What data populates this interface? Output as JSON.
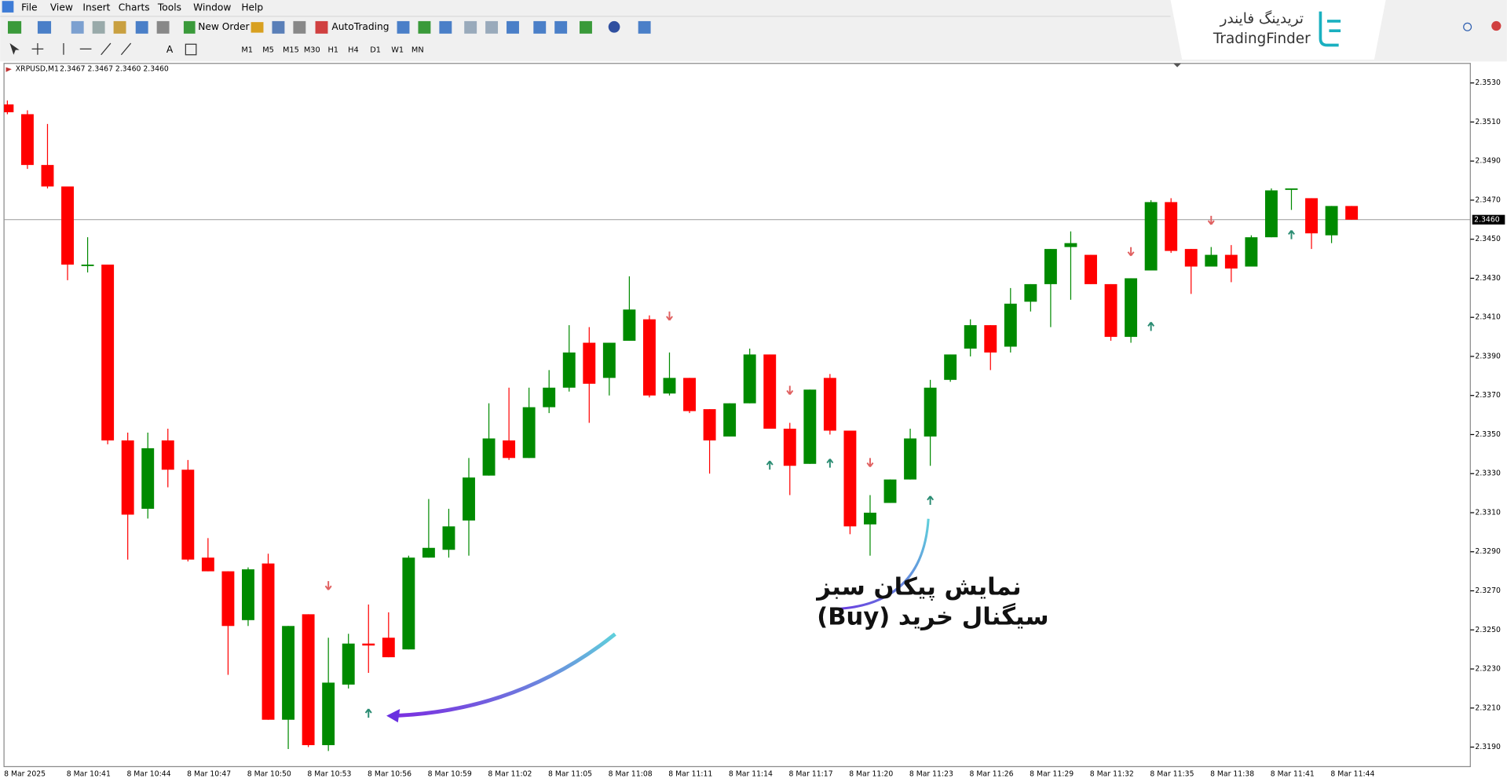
{
  "menu": [
    "File",
    "View",
    "Insert",
    "Charts",
    "Tools",
    "Window",
    "Help"
  ],
  "toolbar": {
    "new_order": "New Order",
    "autotrading": "AutoTrading"
  },
  "timeframes": [
    "M1",
    "M5",
    "M15",
    "M30",
    "H1",
    "H4",
    "D1",
    "W1",
    "MN"
  ],
  "logo": {
    "fa": "تریدینگ فایندر",
    "en": "TradingFinder"
  },
  "chart_data": {
    "type": "candlestick",
    "header": {
      "symbol": "XRPUSD,M1",
      "ohlc": "2.3467 2.3467 2.3460 2.3460"
    },
    "annotation": [
      "نمایش پیکان سبز",
      "سیگنال خرید (Buy)"
    ],
    "up_color": "#008a00",
    "down_color": "#ff0000",
    "buy_color": "#2a8c72",
    "sell_color": "#e06060",
    "categories": [
      "8 Mar 2025",
      null,
      null,
      "8 Mar 10:41",
      null,
      null,
      "8 Mar 10:44",
      null,
      null,
      "8 Mar 10:47",
      null,
      null,
      "8 Mar 10:50",
      null,
      null,
      "8 Mar 10:53",
      null,
      null,
      "8 Mar 10:56",
      null,
      null,
      "8 Mar 10:59",
      null,
      null,
      "8 Mar 11:02",
      null,
      null,
      "8 Mar 11:05",
      null,
      null,
      "8 Mar 11:08",
      null,
      null,
      "8 Mar 11:11",
      null,
      null,
      "8 Mar 11:14",
      null,
      null,
      "8 Mar 11:17",
      null,
      null,
      "8 Mar 11:20",
      null,
      null,
      "8 Mar 11:23",
      null,
      null,
      "8 Mar 11:26",
      null,
      null,
      "8 Mar 11:29",
      null,
      null,
      "8 Mar 11:32",
      null,
      null,
      "8 Mar 11:35",
      null,
      null,
      "8 Mar 11:38",
      null,
      null,
      "8 Mar 11:41",
      null,
      null,
      "8 Mar 11:44",
      null
    ],
    "open": [
      2.3519,
      2.3514,
      2.3488,
      2.3477,
      2.3437,
      2.3437,
      2.3347,
      2.3312,
      2.3347,
      2.3332,
      2.3287,
      2.328,
      2.3255,
      2.3284,
      2.3204,
      2.3258,
      2.3191,
      2.3222,
      2.3243,
      2.3246,
      2.324,
      2.3287,
      2.3291,
      2.3306,
      2.3329,
      2.3347,
      2.3338,
      2.3364,
      2.3374,
      2.3397,
      2.3379,
      2.3398,
      2.3409,
      2.3371,
      2.3379,
      2.3363,
      2.3349,
      2.3366,
      2.3391,
      2.3353,
      2.3335,
      2.3379,
      2.3352,
      2.3304,
      2.3315,
      2.3327,
      2.3349,
      2.3378,
      2.3394,
      2.3406,
      2.3395,
      2.3418,
      2.3427,
      2.3446,
      2.3442,
      2.3427,
      2.34,
      2.3434,
      2.3469,
      2.3445,
      2.3436,
      2.3442,
      2.3436,
      2.3451,
      2.3476,
      2.3471,
      2.3452,
      2.3467
    ],
    "high": [
      2.3521,
      2.3516,
      2.3509,
      2.3477,
      2.3451,
      2.3437,
      2.3351,
      2.3351,
      2.3353,
      2.3337,
      2.3297,
      2.328,
      2.3282,
      2.3289,
      2.3252,
      2.3258,
      2.3246,
      2.3248,
      2.3263,
      2.3259,
      2.3288,
      2.3317,
      2.3312,
      2.3338,
      2.3366,
      2.3374,
      2.3374,
      2.3383,
      2.3406,
      2.3405,
      2.3397,
      2.3431,
      2.3411,
      2.3392,
      2.3379,
      2.3363,
      2.3366,
      2.3394,
      2.3391,
      2.3356,
      2.3373,
      2.3381,
      2.3352,
      2.3319,
      2.3327,
      2.3353,
      2.3378,
      2.3391,
      2.3409,
      2.3406,
      2.3425,
      2.3427,
      2.3445,
      2.3454,
      2.3442,
      2.3427,
      2.343,
      2.347,
      2.3471,
      2.3445,
      2.3446,
      2.3447,
      2.3452,
      2.3476,
      2.3476,
      2.3471,
      2.3467,
      2.3467
    ],
    "low": [
      2.3514,
      2.3486,
      2.3476,
      2.3429,
      2.3433,
      2.3345,
      2.3286,
      2.3307,
      2.3323,
      2.3285,
      2.328,
      2.3227,
      2.3252,
      2.3204,
      2.3189,
      2.319,
      2.3188,
      2.322,
      2.3228,
      2.3236,
      2.324,
      2.3287,
      2.3287,
      2.3288,
      2.3329,
      2.3337,
      2.3338,
      2.3361,
      2.3372,
      2.3356,
      2.337,
      2.3398,
      2.3369,
      2.337,
      2.3361,
      2.333,
      2.3349,
      2.3366,
      2.3353,
      2.3319,
      2.3335,
      2.335,
      2.3299,
      2.3288,
      2.3315,
      2.3327,
      2.3334,
      2.3377,
      2.339,
      2.3383,
      2.3392,
      2.3413,
      2.3405,
      2.3419,
      2.3427,
      2.3398,
      2.3397,
      2.3434,
      2.3443,
      2.3422,
      2.3436,
      2.3428,
      2.3436,
      2.3451,
      2.3465,
      2.3445,
      2.3448,
      2.346
    ],
    "close": [
      2.3515,
      2.3488,
      2.3477,
      2.3437,
      2.3437,
      2.3347,
      2.3309,
      2.3343,
      2.3332,
      2.3286,
      2.328,
      2.3252,
      2.3281,
      2.3204,
      2.3252,
      2.3191,
      2.3223,
      2.3243,
      2.3242,
      2.3236,
      2.3287,
      2.3292,
      2.3303,
      2.3328,
      2.3348,
      2.3338,
      2.3364,
      2.3374,
      2.3392,
      2.3376,
      2.3397,
      2.3414,
      2.337,
      2.3379,
      2.3362,
      2.3347,
      2.3366,
      2.3391,
      2.3353,
      2.3334,
      2.3373,
      2.3352,
      2.3303,
      2.331,
      2.3327,
      2.3348,
      2.3374,
      2.3391,
      2.3406,
      2.3392,
      2.3417,
      2.3427,
      2.3445,
      2.3448,
      2.3427,
      2.34,
      2.343,
      2.3469,
      2.3444,
      2.3436,
      2.3442,
      2.3435,
      2.3451,
      2.3475,
      2.3476,
      2.3453,
      2.3467,
      2.346
    ],
    "buy_signals": [
      {
        "candle": 18,
        "value": 2.3207
      },
      {
        "candle": 38,
        "value": 2.3334
      },
      {
        "candle": 41,
        "value": 2.3335
      },
      {
        "candle": 46,
        "value": 2.3316
      },
      {
        "candle": 57,
        "value": 2.3405
      },
      {
        "candle": 64,
        "value": 2.3452
      }
    ],
    "sell_signals": [
      {
        "candle": 16,
        "value": 2.3273
      },
      {
        "candle": 33,
        "value": 2.3411
      },
      {
        "candle": 39,
        "value": 2.3373
      },
      {
        "candle": 43,
        "value": 2.3336
      },
      {
        "candle": 56,
        "value": 2.3444
      },
      {
        "candle": 60,
        "value": 2.346
      }
    ],
    "price_line": {
      "value": 2.346,
      "label": "2.3460"
    },
    "ylim": [
      2.318,
      2.354
    ],
    "yticks": [
      {
        "value": 2.353,
        "label": "2.3530"
      },
      {
        "value": 2.351,
        "label": "2.3510"
      },
      {
        "value": 2.349,
        "label": "2.3490"
      },
      {
        "value": 2.347,
        "label": "2.3470"
      },
      {
        "value": 2.345,
        "label": "2.3450"
      },
      {
        "value": 2.343,
        "label": "2.3430"
      },
      {
        "value": 2.341,
        "label": "2.3410"
      },
      {
        "value": 2.339,
        "label": "2.3390"
      },
      {
        "value": 2.337,
        "label": "2.3370"
      },
      {
        "value": 2.335,
        "label": "2.3350"
      },
      {
        "value": 2.333,
        "label": "2.3330"
      },
      {
        "value": 2.331,
        "label": "2.3310"
      },
      {
        "value": 2.329,
        "label": "2.3290"
      },
      {
        "value": 2.327,
        "label": "2.3270"
      },
      {
        "value": 2.325,
        "label": "2.3250"
      },
      {
        "value": 2.323,
        "label": "2.3230"
      },
      {
        "value": 2.321,
        "label": "2.3210"
      },
      {
        "value": 2.319,
        "label": "2.3190"
      }
    ]
  }
}
